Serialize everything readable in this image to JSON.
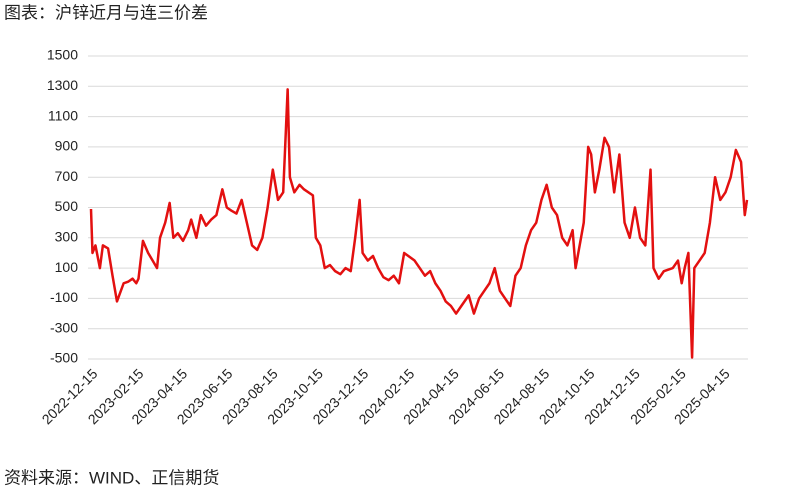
{
  "chart_data": {
    "type": "line",
    "title": "图表：沪锌近月与连三价差",
    "source": "资料来源：WIND、正信期货",
    "color": "#e31010",
    "grid": true,
    "ylim": [
      -500,
      1500
    ],
    "yticks": [
      -500,
      -300,
      -100,
      100,
      300,
      500,
      700,
      900,
      1100,
      1300,
      1500
    ],
    "xlim": [
      "2022-12-14",
      "2025-05-16"
    ],
    "xticks": [
      "2022-12-15",
      "2023-02-15",
      "2023-04-15",
      "2023-06-15",
      "2023-08-15",
      "2023-10-15",
      "2023-12-15",
      "2024-02-15",
      "2024-04-15",
      "2024-06-15",
      "2024-08-15",
      "2024-10-15",
      "2024-12-15",
      "2025-02-15",
      "2025-04-15"
    ],
    "x": [
      "2022-12-14",
      "2022-12-16",
      "2022-12-20",
      "2022-12-26",
      "2022-12-30",
      "2023-01-06",
      "2023-01-12",
      "2023-01-18",
      "2023-01-27",
      "2023-02-02",
      "2023-02-08",
      "2023-02-13",
      "2023-02-16",
      "2023-02-22",
      "2023-03-01",
      "2023-03-07",
      "2023-03-13",
      "2023-03-17",
      "2023-03-24",
      "2023-03-30",
      "2023-04-04",
      "2023-04-10",
      "2023-04-17",
      "2023-04-24",
      "2023-04-28",
      "2023-05-05",
      "2023-05-11",
      "2023-05-18",
      "2023-05-25",
      "2023-06-01",
      "2023-06-09",
      "2023-06-15",
      "2023-06-21",
      "2023-06-28",
      "2023-07-05",
      "2023-07-12",
      "2023-07-19",
      "2023-07-26",
      "2023-08-02",
      "2023-08-09",
      "2023-08-16",
      "2023-08-23",
      "2023-08-30",
      "2023-09-05",
      "2023-09-08",
      "2023-09-14",
      "2023-09-21",
      "2023-09-27",
      "2023-10-09",
      "2023-10-13",
      "2023-10-19",
      "2023-10-25",
      "2023-11-01",
      "2023-11-08",
      "2023-11-15",
      "2023-11-22",
      "2023-11-29",
      "2023-12-05",
      "2023-12-11",
      "2023-12-15",
      "2023-12-22",
      "2023-12-29",
      "2024-01-05",
      "2024-01-12",
      "2024-01-19",
      "2024-01-26",
      "2024-02-02",
      "2024-02-09",
      "2024-02-23",
      "2024-03-01",
      "2024-03-08",
      "2024-03-15",
      "2024-03-22",
      "2024-03-29",
      "2024-04-05",
      "2024-04-12",
      "2024-04-19",
      "2024-04-26",
      "2024-05-06",
      "2024-05-13",
      "2024-05-20",
      "2024-05-27",
      "2024-06-03",
      "2024-06-10",
      "2024-06-17",
      "2024-06-24",
      "2024-07-01",
      "2024-07-08",
      "2024-07-15",
      "2024-07-22",
      "2024-07-29",
      "2024-08-05",
      "2024-08-12",
      "2024-08-19",
      "2024-08-26",
      "2024-09-02",
      "2024-09-09",
      "2024-09-16",
      "2024-09-23",
      "2024-09-27",
      "2024-10-08",
      "2024-10-14",
      "2024-10-18",
      "2024-10-23",
      "2024-10-29",
      "2024-11-05",
      "2024-11-11",
      "2024-11-18",
      "2024-11-25",
      "2024-12-02",
      "2024-12-09",
      "2024-12-16",
      "2024-12-23",
      "2024-12-30",
      "2025-01-06",
      "2025-01-10",
      "2025-01-17",
      "2025-01-24",
      "2025-02-05",
      "2025-02-12",
      "2025-02-17",
      "2025-02-21",
      "2025-02-26",
      "2025-03-03",
      "2025-03-06",
      "2025-03-13",
      "2025-03-20",
      "2025-03-27",
      "2025-04-03",
      "2025-04-10",
      "2025-04-17",
      "2025-04-24",
      "2025-05-01",
      "2025-05-08",
      "2025-05-13",
      "2025-05-16"
    ],
    "values": [
      490,
      200,
      250,
      100,
      250,
      230,
      50,
      -120,
      0,
      10,
      30,
      0,
      30,
      280,
      200,
      150,
      100,
      300,
      400,
      530,
      300,
      330,
      280,
      350,
      420,
      300,
      450,
      380,
      420,
      450,
      620,
      500,
      480,
      460,
      550,
      400,
      250,
      220,
      300,
      500,
      750,
      550,
      600,
      1280,
      700,
      600,
      650,
      620,
      580,
      300,
      250,
      100,
      120,
      80,
      60,
      100,
      80,
      300,
      550,
      200,
      150,
      180,
      100,
      40,
      20,
      50,
      0,
      200,
      150,
      100,
      50,
      80,
      0,
      -50,
      -120,
      -150,
      -200,
      -150,
      -80,
      -200,
      -100,
      -50,
      0,
      100,
      -50,
      -100,
      -150,
      50,
      100,
      250,
      350,
      400,
      550,
      650,
      500,
      450,
      300,
      250,
      350,
      100,
      400,
      900,
      850,
      600,
      750,
      960,
      900,
      600,
      850,
      400,
      300,
      500,
      300,
      250,
      750,
      100,
      30,
      80,
      100,
      150,
      0,
      100,
      200,
      -490,
      100,
      150,
      200,
      400,
      700,
      550,
      600,
      700,
      880,
      800,
      450,
      550
    ]
  }
}
